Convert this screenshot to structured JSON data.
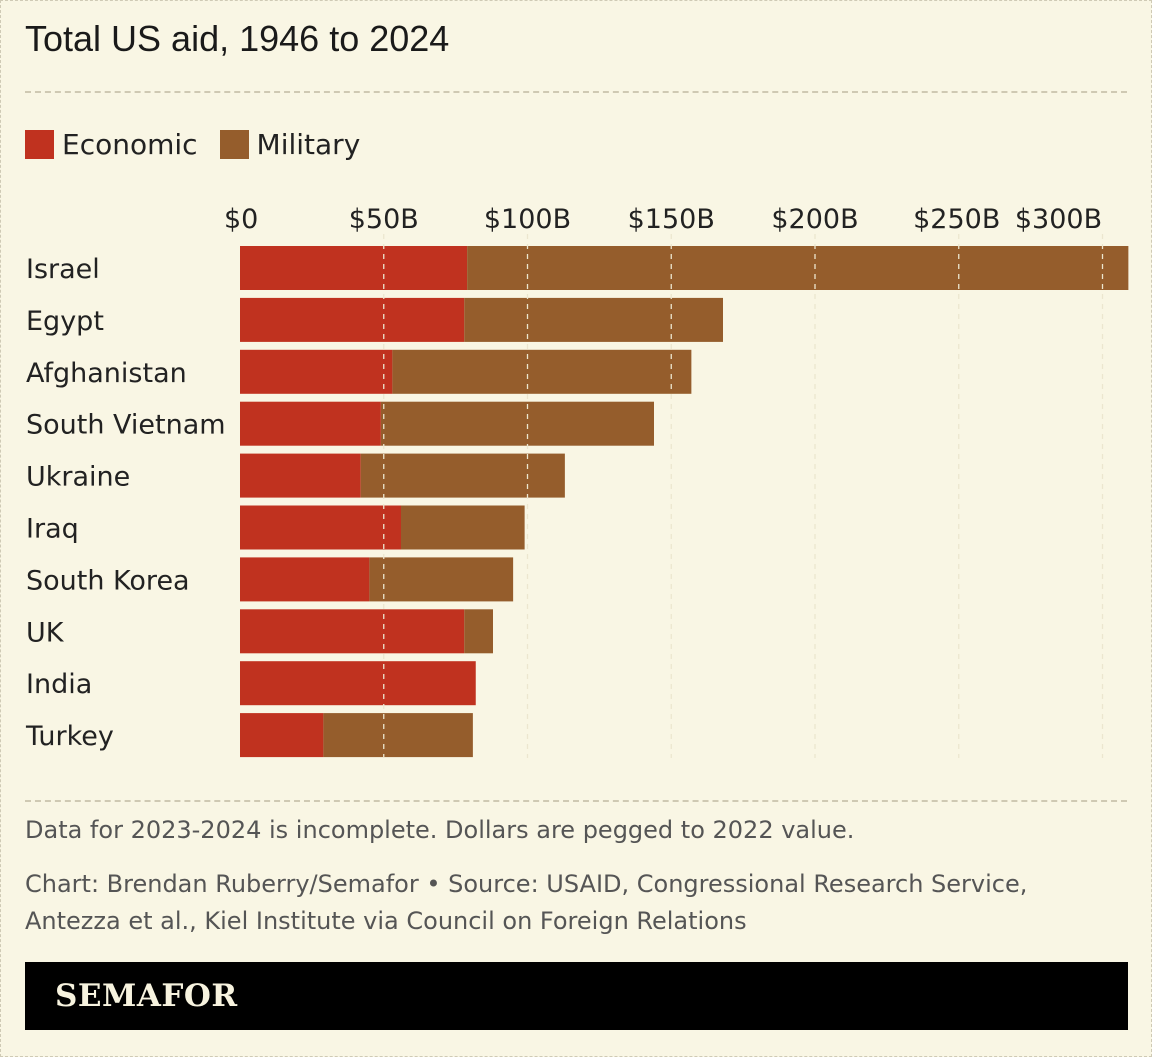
{
  "title": "Total US aid, 1946 to 2024",
  "legend": {
    "economic": "Economic",
    "military": "Military"
  },
  "colors": {
    "economic": "#c0321f",
    "military": "#955d2c",
    "background": "#f9f6e4",
    "grid": "#ece6cf"
  },
  "chart_data": {
    "type": "bar",
    "orientation": "horizontal",
    "stacked": true,
    "categories": [
      "Israel",
      "Egypt",
      "Afghanistan",
      "South Vietnam",
      "Ukraine",
      "Iraq",
      "South Korea",
      "UK",
      "India",
      "Turkey"
    ],
    "series": [
      {
        "name": "Economic",
        "values": [
          79,
          78,
          53,
          49,
          42,
          56,
          45,
          78,
          82,
          29
        ]
      },
      {
        "name": "Military",
        "values": [
          230,
          90,
          104,
          95,
          71,
          43,
          50,
          10,
          0,
          52
        ]
      }
    ],
    "x_ticks": [
      {
        "value": 0,
        "label": "$0"
      },
      {
        "value": 50,
        "label": "$50B"
      },
      {
        "value": 100,
        "label": "$100B"
      },
      {
        "value": 150,
        "label": "$150B"
      },
      {
        "value": 200,
        "label": "$200B"
      },
      {
        "value": 250,
        "label": "$250B"
      },
      {
        "value": 300,
        "label": "$300B"
      }
    ],
    "xlim": [
      0,
      310
    ],
    "grid": true,
    "legend_position": "top-left"
  },
  "note": "Data for 2023-2024 is incomplete. Dollars are pegged to 2022 value.",
  "credit": "Chart: Brendan Ruberry/Semafor • Source: USAID, Congressional Research Service, Antezza et al., Kiel Institute via Council on Foreign Relations",
  "brand": "SEMAFOR"
}
